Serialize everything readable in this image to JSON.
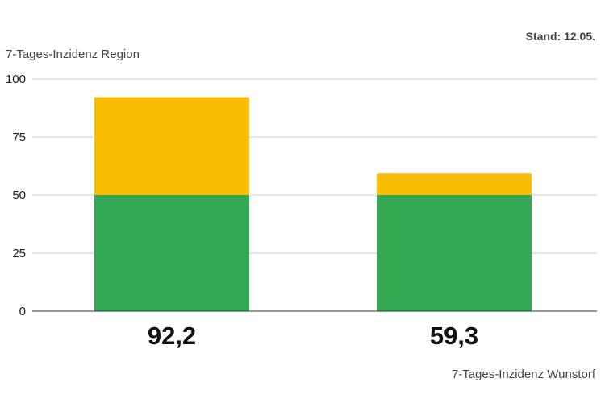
{
  "chart_data": {
    "type": "bar",
    "stacked": true,
    "note": "Stand: 12.05.",
    "ylabel": "7-Tages-Inzidenz Region",
    "xlabel": "7-Tages-Inzidenz Wunstorf",
    "categories": [
      "92,2",
      "59,3"
    ],
    "ylim": [
      0,
      100
    ],
    "yticks": [
      0,
      25,
      50,
      75,
      100
    ],
    "grid": true,
    "series": [
      {
        "values": [
          50,
          50
        ],
        "color": "#34a853"
      },
      {
        "values": [
          42.2,
          9.3
        ],
        "color": "#fbbc04"
      }
    ]
  }
}
